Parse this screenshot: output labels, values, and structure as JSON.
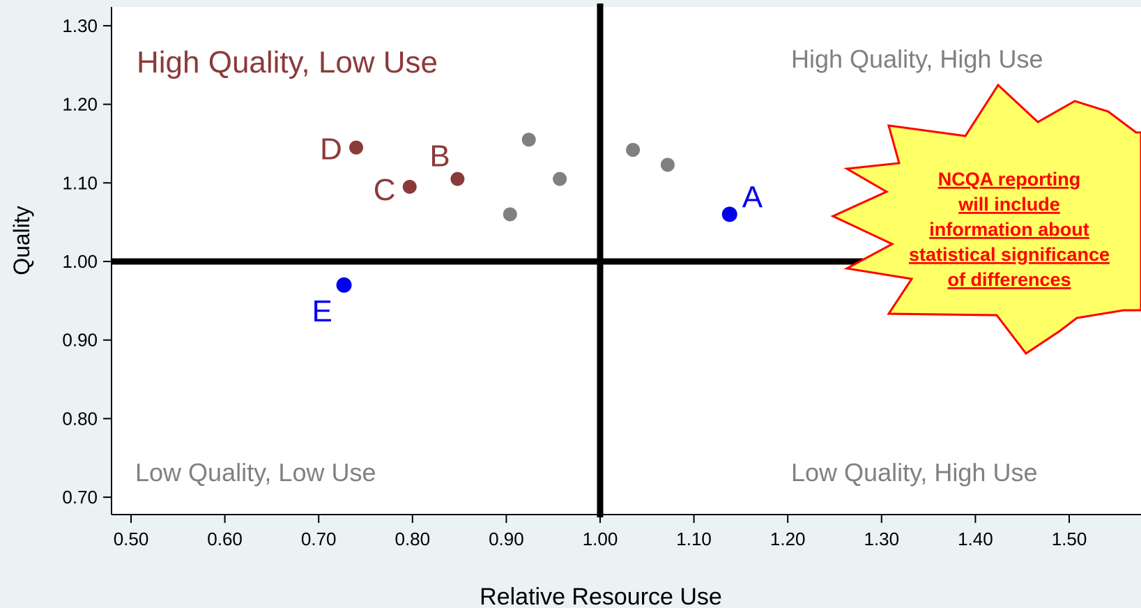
{
  "chart_data": {
    "type": "scatter",
    "xlabel": "Relative Resource Use",
    "ylabel": "Quality",
    "xlim": [
      0.48,
      1.525
    ],
    "ylim": [
      0.67,
      1.32
    ],
    "x_ticks": [
      "0.50",
      "0.60",
      "0.70",
      "0.80",
      "0.90",
      "1.00",
      "1.10",
      "1.20",
      "1.30",
      "1.40",
      "1.50"
    ],
    "y_ticks": [
      "0.70",
      "0.80",
      "0.90",
      "1.00",
      "1.10",
      "1.20",
      "1.30"
    ],
    "x_tick_values": [
      0.5,
      0.6,
      0.7,
      0.8,
      0.9,
      1.0,
      1.1,
      1.2,
      1.3,
      1.4,
      1.5
    ],
    "y_tick_values": [
      0.7,
      0.8,
      0.9,
      1.0,
      1.1,
      1.2,
      1.3
    ],
    "reference_lines": {
      "x": 1.0,
      "y": 1.0
    },
    "quadrant_labels": {
      "top_left": "High Quality, Low Use",
      "top_right": "High Quality, High Use",
      "bottom_left": "Low Quality, Low Use",
      "bottom_right": "Low Quality, High Use"
    },
    "colors": {
      "highlight": "#8b3a3a",
      "blue": "#0000ee",
      "other": "#808080",
      "burst_fill": "#ffff66",
      "burst_text": "#ff0000",
      "background": "#eaf2f3"
    },
    "points": [
      {
        "label": "D",
        "x": 0.74,
        "y": 1.145,
        "group": "highlight"
      },
      {
        "label": "C",
        "x": 0.797,
        "y": 1.095,
        "group": "highlight"
      },
      {
        "label": "B",
        "x": 0.848,
        "y": 1.105,
        "group": "highlight"
      },
      {
        "label": "A",
        "x": 1.138,
        "y": 1.06,
        "group": "blue"
      },
      {
        "label": "E",
        "x": 0.727,
        "y": 0.97,
        "group": "blue"
      },
      {
        "label": "",
        "x": 0.924,
        "y": 1.155,
        "group": "other"
      },
      {
        "label": "",
        "x": 0.957,
        "y": 1.105,
        "group": "other"
      },
      {
        "label": "",
        "x": 0.904,
        "y": 1.06,
        "group": "other"
      },
      {
        "label": "",
        "x": 1.035,
        "y": 1.142,
        "group": "other"
      },
      {
        "label": "",
        "x": 1.072,
        "y": 1.123,
        "group": "other"
      }
    ],
    "callout": {
      "lines": [
        "NCQA reporting",
        "will include",
        "information about",
        "statistical significance",
        "of differences"
      ]
    }
  }
}
